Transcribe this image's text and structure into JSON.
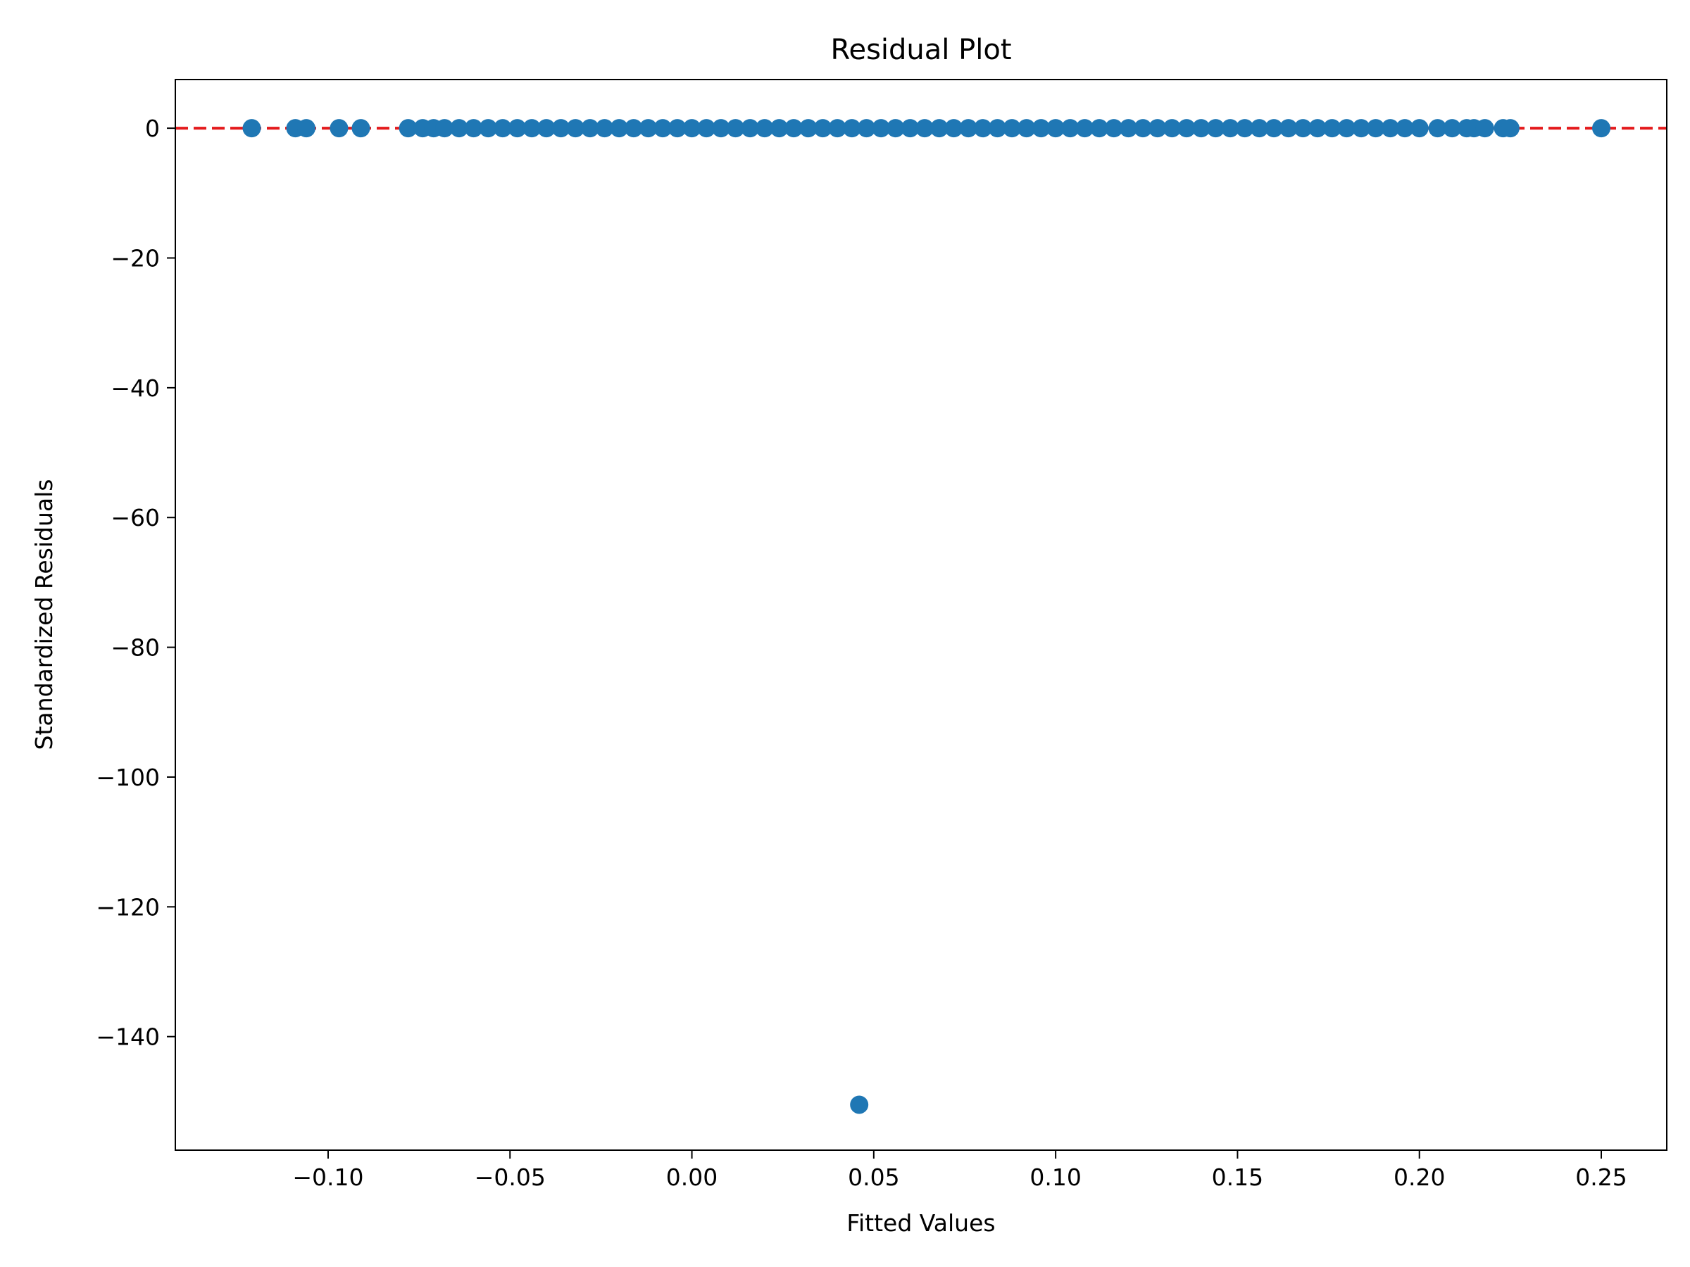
{
  "chart_data": {
    "type": "scatter",
    "title": "Residual Plot",
    "xlabel": "Fitted Values",
    "ylabel": "Standardized Residuals",
    "xlim": [
      -0.142,
      0.268
    ],
    "ylim": [
      -157.5,
      7.5
    ],
    "x_ticks": [
      -0.1,
      -0.05,
      0.0,
      0.05,
      0.1,
      0.15,
      0.2,
      0.25
    ],
    "x_tick_labels": [
      "−0.10",
      "−0.05",
      "0.00",
      "0.05",
      "0.10",
      "0.15",
      "0.20",
      "0.25"
    ],
    "y_ticks": [
      0,
      -20,
      -40,
      -60,
      -80,
      -100,
      -120,
      -140
    ],
    "y_tick_labels": [
      "0",
      "−20",
      "−40",
      "−60",
      "−80",
      "−100",
      "−120",
      "−140"
    ],
    "grid": false,
    "reference_line": {
      "y": 0,
      "color": "#e41a1c",
      "style": "dashed"
    },
    "marker_color": "#1f77b4",
    "series": [
      {
        "points": [
          {
            "x": -0.121,
            "y": 0
          },
          {
            "x": -0.109,
            "y": 0
          },
          {
            "x": -0.106,
            "y": 0
          },
          {
            "x": -0.097,
            "y": 0
          },
          {
            "x": -0.091,
            "y": 0
          },
          {
            "x": -0.078,
            "y": 0
          },
          {
            "x": -0.074,
            "y": 0
          },
          {
            "x": -0.071,
            "y": 0
          },
          {
            "x": -0.068,
            "y": 0
          },
          {
            "x": -0.064,
            "y": 0
          },
          {
            "x": -0.06,
            "y": 0
          },
          {
            "x": -0.056,
            "y": 0
          },
          {
            "x": -0.052,
            "y": 0
          },
          {
            "x": -0.048,
            "y": 0
          },
          {
            "x": -0.044,
            "y": 0
          },
          {
            "x": -0.04,
            "y": 0
          },
          {
            "x": -0.036,
            "y": 0
          },
          {
            "x": -0.032,
            "y": 0
          },
          {
            "x": -0.028,
            "y": 0
          },
          {
            "x": -0.024,
            "y": 0
          },
          {
            "x": -0.02,
            "y": 0
          },
          {
            "x": -0.016,
            "y": 0
          },
          {
            "x": -0.012,
            "y": 0
          },
          {
            "x": -0.008,
            "y": 0
          },
          {
            "x": -0.004,
            "y": 0
          },
          {
            "x": 0.0,
            "y": 0
          },
          {
            "x": 0.004,
            "y": 0
          },
          {
            "x": 0.008,
            "y": 0
          },
          {
            "x": 0.012,
            "y": 0
          },
          {
            "x": 0.016,
            "y": 0
          },
          {
            "x": 0.02,
            "y": 0
          },
          {
            "x": 0.024,
            "y": 0
          },
          {
            "x": 0.028,
            "y": 0
          },
          {
            "x": 0.032,
            "y": 0
          },
          {
            "x": 0.036,
            "y": 0
          },
          {
            "x": 0.04,
            "y": 0
          },
          {
            "x": 0.044,
            "y": 0
          },
          {
            "x": 0.048,
            "y": 0
          },
          {
            "x": 0.052,
            "y": 0
          },
          {
            "x": 0.056,
            "y": 0
          },
          {
            "x": 0.06,
            "y": 0
          },
          {
            "x": 0.064,
            "y": 0
          },
          {
            "x": 0.068,
            "y": 0
          },
          {
            "x": 0.072,
            "y": 0
          },
          {
            "x": 0.076,
            "y": 0
          },
          {
            "x": 0.08,
            "y": 0
          },
          {
            "x": 0.084,
            "y": 0
          },
          {
            "x": 0.088,
            "y": 0
          },
          {
            "x": 0.092,
            "y": 0
          },
          {
            "x": 0.096,
            "y": 0
          },
          {
            "x": 0.1,
            "y": 0
          },
          {
            "x": 0.104,
            "y": 0
          },
          {
            "x": 0.108,
            "y": 0
          },
          {
            "x": 0.112,
            "y": 0
          },
          {
            "x": 0.116,
            "y": 0
          },
          {
            "x": 0.12,
            "y": 0
          },
          {
            "x": 0.124,
            "y": 0
          },
          {
            "x": 0.128,
            "y": 0
          },
          {
            "x": 0.132,
            "y": 0
          },
          {
            "x": 0.136,
            "y": 0
          },
          {
            "x": 0.14,
            "y": 0
          },
          {
            "x": 0.144,
            "y": 0
          },
          {
            "x": 0.148,
            "y": 0
          },
          {
            "x": 0.152,
            "y": 0
          },
          {
            "x": 0.156,
            "y": 0
          },
          {
            "x": 0.16,
            "y": 0
          },
          {
            "x": 0.164,
            "y": 0
          },
          {
            "x": 0.168,
            "y": 0
          },
          {
            "x": 0.172,
            "y": 0
          },
          {
            "x": 0.176,
            "y": 0
          },
          {
            "x": 0.18,
            "y": 0
          },
          {
            "x": 0.184,
            "y": 0
          },
          {
            "x": 0.188,
            "y": 0
          },
          {
            "x": 0.192,
            "y": 0
          },
          {
            "x": 0.196,
            "y": 0
          },
          {
            "x": 0.2,
            "y": 0
          },
          {
            "x": 0.205,
            "y": 0
          },
          {
            "x": 0.209,
            "y": 0
          },
          {
            "x": 0.213,
            "y": 0
          },
          {
            "x": 0.215,
            "y": 0
          },
          {
            "x": 0.218,
            "y": 0
          },
          {
            "x": 0.223,
            "y": 0
          },
          {
            "x": 0.225,
            "y": 0
          },
          {
            "x": 0.25,
            "y": 0
          },
          {
            "x": 0.046,
            "y": -150.5
          }
        ]
      }
    ]
  }
}
